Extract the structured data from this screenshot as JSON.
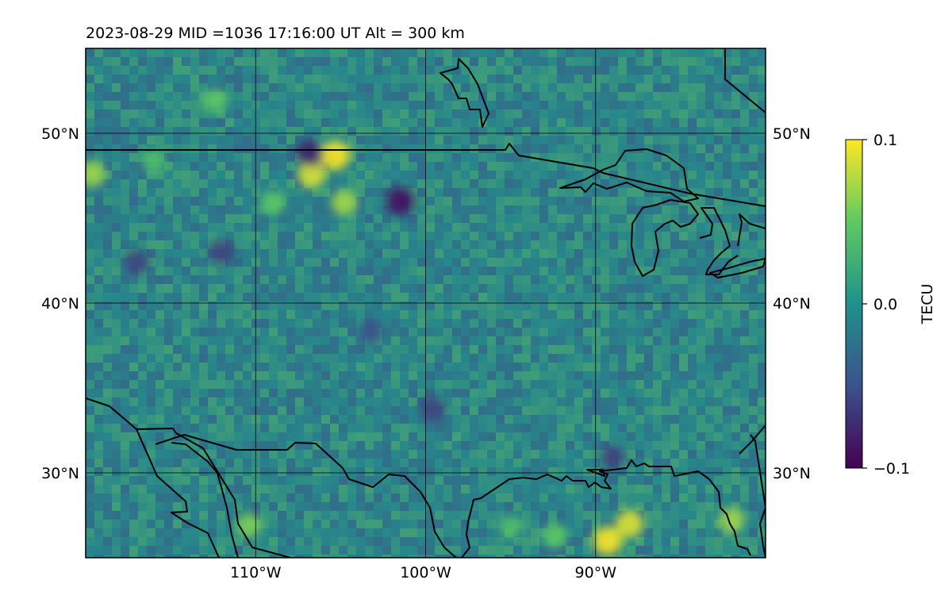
{
  "figure": {
    "title": "2023-08-29  MID =1036    17:16:00  UT  Alt = 300 km"
  },
  "map": {
    "lat_range": [
      25,
      55
    ],
    "lon_range": [
      -120,
      -80
    ],
    "lat_ticks": [
      {
        "value": 50,
        "label": "50°N"
      },
      {
        "value": 40,
        "label": "40°N"
      },
      {
        "value": 30,
        "label": "30°N"
      }
    ],
    "lon_ticks": [
      {
        "value": -110,
        "label": "110°W"
      },
      {
        "value": -100,
        "label": "100°W"
      },
      {
        "value": -90,
        "label": "90°W"
      }
    ],
    "gridlines": true,
    "field_background": "#2f7a88",
    "highlights": [
      {
        "lat": 48.7,
        "lon": -105.3,
        "value": 0.1
      },
      {
        "lat": 47.6,
        "lon": -106.7,
        "value": 0.09
      },
      {
        "lat": 45.9,
        "lon": -104.8,
        "value": 0.07
      },
      {
        "lat": 47.6,
        "lon": -119.6,
        "value": 0.07
      },
      {
        "lat": 26.0,
        "lon": -89.3,
        "value": 0.1
      },
      {
        "lat": 27.0,
        "lon": -88.0,
        "value": 0.09
      },
      {
        "lat": 27.2,
        "lon": -82.0,
        "value": 0.07
      },
      {
        "lat": 26.9,
        "lon": -110.4,
        "value": 0.06
      },
      {
        "lat": 26.3,
        "lon": -92.4,
        "value": 0.05
      },
      {
        "lat": 51.9,
        "lon": -112.4,
        "value": 0.05
      },
      {
        "lat": 45.9,
        "lon": -109.0,
        "value": 0.05
      },
      {
        "lat": 48.3,
        "lon": -116.0,
        "value": 0.04
      },
      {
        "lat": 26.8,
        "lon": -95.0,
        "value": 0.04
      },
      {
        "lat": 46.0,
        "lon": -101.5,
        "value": -0.09
      },
      {
        "lat": 48.8,
        "lon": -106.8,
        "value": -0.08
      },
      {
        "lat": 43.0,
        "lon": -112.0,
        "value": -0.06
      },
      {
        "lat": 33.8,
        "lon": -99.6,
        "value": -0.06
      },
      {
        "lat": 42.4,
        "lon": -117.0,
        "value": -0.06
      },
      {
        "lat": 30.9,
        "lon": -89.0,
        "value": -0.06
      },
      {
        "lat": 38.3,
        "lon": -103.2,
        "value": -0.05
      }
    ]
  },
  "colorbar": {
    "label": "TECU",
    "min": -0.1,
    "max": 0.1,
    "tick_labels": [
      "0.1",
      "0.0",
      "−0.1"
    ],
    "colors": [
      "#440154",
      "#3b528b",
      "#21918c",
      "#5ec962",
      "#fde725"
    ]
  }
}
